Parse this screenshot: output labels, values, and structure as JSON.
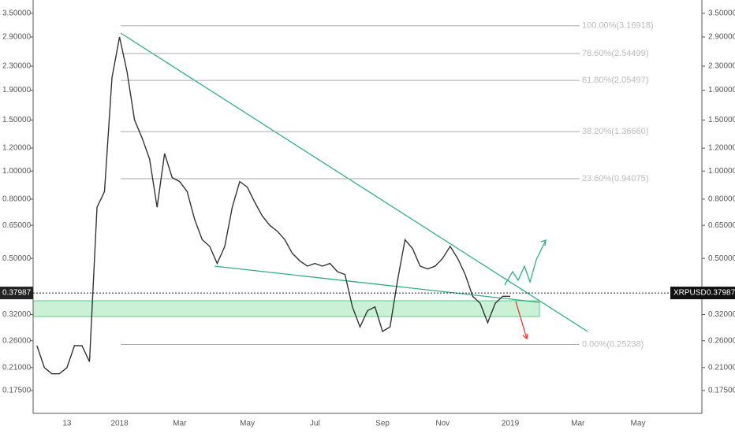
{
  "chart_data": {
    "type": "line",
    "symbol": "XRPUSD",
    "log_scale": true,
    "color": "#333333",
    "categories": [
      null,
      null,
      null,
      null,
      "13",
      null,
      null,
      null,
      null,
      null,
      null,
      "2018",
      null,
      null,
      null,
      null,
      null,
      null,
      null,
      "Mar",
      null,
      null,
      null,
      null,
      null,
      null,
      null,
      null,
      "May",
      null,
      null,
      null,
      null,
      null,
      null,
      null,
      null,
      "Jul",
      null,
      null,
      null,
      null,
      null,
      null,
      null,
      null,
      "Sep",
      null,
      null,
      null,
      null,
      null,
      null,
      null,
      "Nov",
      null,
      null,
      null,
      null,
      null,
      null,
      null,
      null,
      "2019",
      null,
      null,
      null,
      null,
      null,
      null,
      null,
      null,
      "Mar",
      null,
      null,
      null,
      null,
      null,
      null,
      null,
      "May",
      null,
      null,
      null,
      null,
      null,
      null,
      null,
      null
    ],
    "values": [
      0.25,
      0.21,
      0.2,
      0.2,
      0.21,
      0.25,
      0.25,
      0.22,
      0.75,
      0.85,
      2.1,
      2.9,
      2.2,
      1.5,
      1.3,
      1.1,
      0.75,
      1.15,
      0.95,
      0.92,
      0.85,
      0.68,
      0.58,
      0.55,
      0.48,
      0.55,
      0.75,
      0.92,
      0.88,
      0.78,
      0.7,
      0.65,
      0.62,
      0.58,
      0.52,
      0.49,
      0.47,
      0.48,
      0.47,
      0.48,
      0.45,
      0.44,
      0.34,
      0.29,
      0.33,
      0.34,
      0.28,
      0.29,
      0.42,
      0.58,
      0.54,
      0.47,
      0.46,
      0.47,
      0.5,
      0.55,
      0.5,
      0.44,
      0.37,
      0.35,
      0.3,
      0.35,
      0.37,
      0.37,
      null,
      null,
      null,
      null,
      null,
      null,
      null,
      null,
      null,
      null,
      null,
      null,
      null,
      null,
      null,
      null,
      null,
      null,
      null,
      null,
      null,
      null,
      null,
      null,
      null
    ],
    "ylim": [
      0.146,
      3.89
    ],
    "yticks": [
      {
        "value": 3.5,
        "label": "3.50000"
      },
      {
        "value": 2.9,
        "label": "2.90000"
      },
      {
        "value": 2.3,
        "label": "2.30000"
      },
      {
        "value": 1.9,
        "label": "1.90000"
      },
      {
        "value": 1.5,
        "label": "1.50000"
      },
      {
        "value": 1.2,
        "label": "1.20000"
      },
      {
        "value": 1.0,
        "label": "1.00000"
      },
      {
        "value": 0.8,
        "label": "0.80000"
      },
      {
        "value": 0.65,
        "label": "0.65000"
      },
      {
        "value": 0.5,
        "label": "0.50000"
      },
      {
        "value": 0.32,
        "label": "0.32000"
      },
      {
        "value": 0.26,
        "label": "0.26000"
      },
      {
        "value": 0.21,
        "label": "0.21000"
      },
      {
        "value": 0.175,
        "label": "0.17500"
      }
    ],
    "fib_levels": [
      {
        "label": "100.00%(3.16918)",
        "value": 3.16918
      },
      {
        "label": "78.60%(2.54499)",
        "value": 2.54499
      },
      {
        "label": "61.80%(2.05497)",
        "value": 2.05497
      },
      {
        "label": "38.20%(1.36660)",
        "value": 1.3666
      },
      {
        "label": "23.60%(0.94075)",
        "value": 0.94075
      },
      {
        "label": "0.00%(0.25238)",
        "value": 0.25238
      }
    ],
    "last_price": {
      "value": 0.37987,
      "label": "0.37987"
    }
  }
}
